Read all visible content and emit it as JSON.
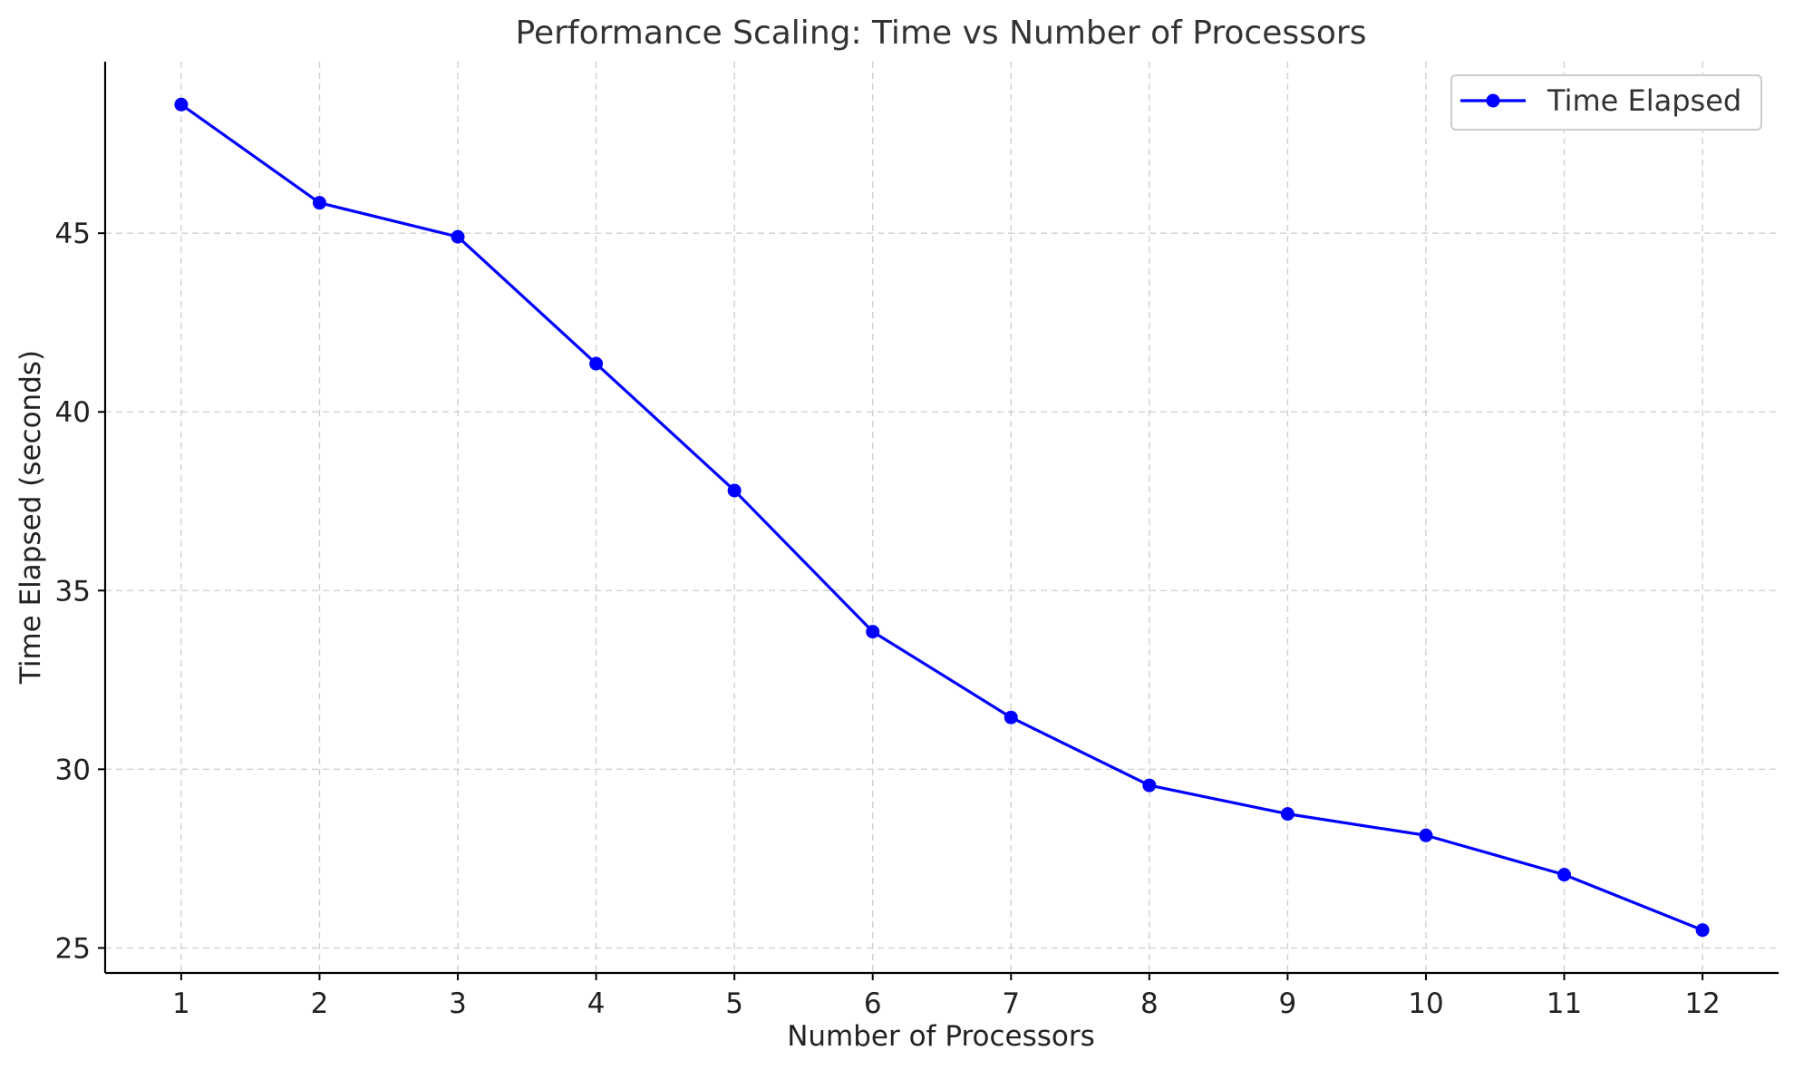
{
  "chart_data": {
    "type": "line",
    "title": "Performance Scaling: Time vs Number of Processors",
    "xlabel": "Number of Processors",
    "ylabel": "Time Elapsed (seconds)",
    "x": [
      1,
      2,
      3,
      4,
      5,
      6,
      7,
      8,
      9,
      10,
      11,
      12
    ],
    "x_ticks": [
      "1",
      "2",
      "3",
      "4",
      "5",
      "6",
      "7",
      "8",
      "9",
      "10",
      "11",
      "12"
    ],
    "y_ticks": [
      "25",
      "30",
      "35",
      "40",
      "45"
    ],
    "xlim": [
      0.45,
      12.55
    ],
    "ylim": [
      24.3,
      49.8
    ],
    "grid": true,
    "legend_position": "top-right",
    "series": [
      {
        "name": "Time Elapsed",
        "color": "#0000ff",
        "marker": "circle",
        "values": [
          48.6,
          45.85,
          44.9,
          41.35,
          37.8,
          33.85,
          31.45,
          29.55,
          28.75,
          28.15,
          27.05,
          25.5
        ]
      }
    ]
  }
}
